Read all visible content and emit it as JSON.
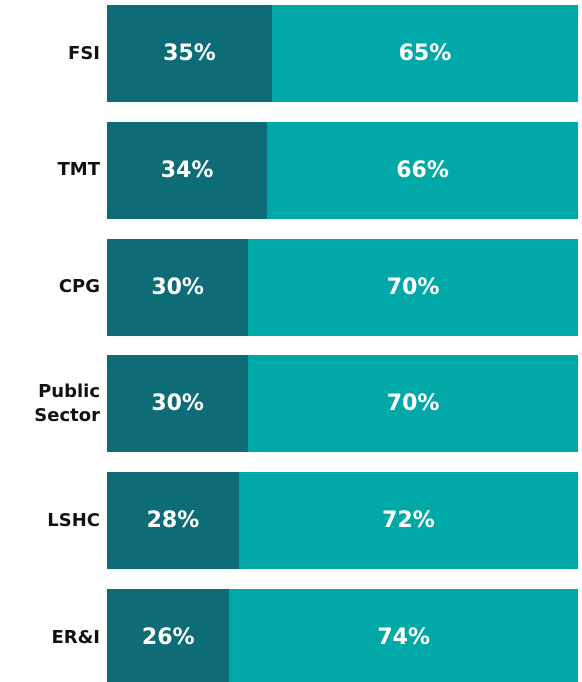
{
  "chart_data": {
    "type": "stacked_bar_horizontal",
    "categories": [
      "FSI",
      "TMT",
      "CPG",
      "Public Sector",
      "LSHC",
      "ER&I"
    ],
    "xlim": [
      0,
      100
    ],
    "series": [
      {
        "color": "#0e6c77",
        "values": [
          35,
          34,
          30,
          30,
          28,
          26
        ],
        "value_labels": [
          "35%",
          "34%",
          "30%",
          "30%",
          "28%",
          "26%"
        ]
      },
      {
        "color": "#00a9a7",
        "values": [
          65,
          66,
          70,
          70,
          72,
          74
        ],
        "value_labels": [
          "65%",
          "66%",
          "70%",
          "70%",
          "72%",
          "74%"
        ]
      }
    ]
  }
}
